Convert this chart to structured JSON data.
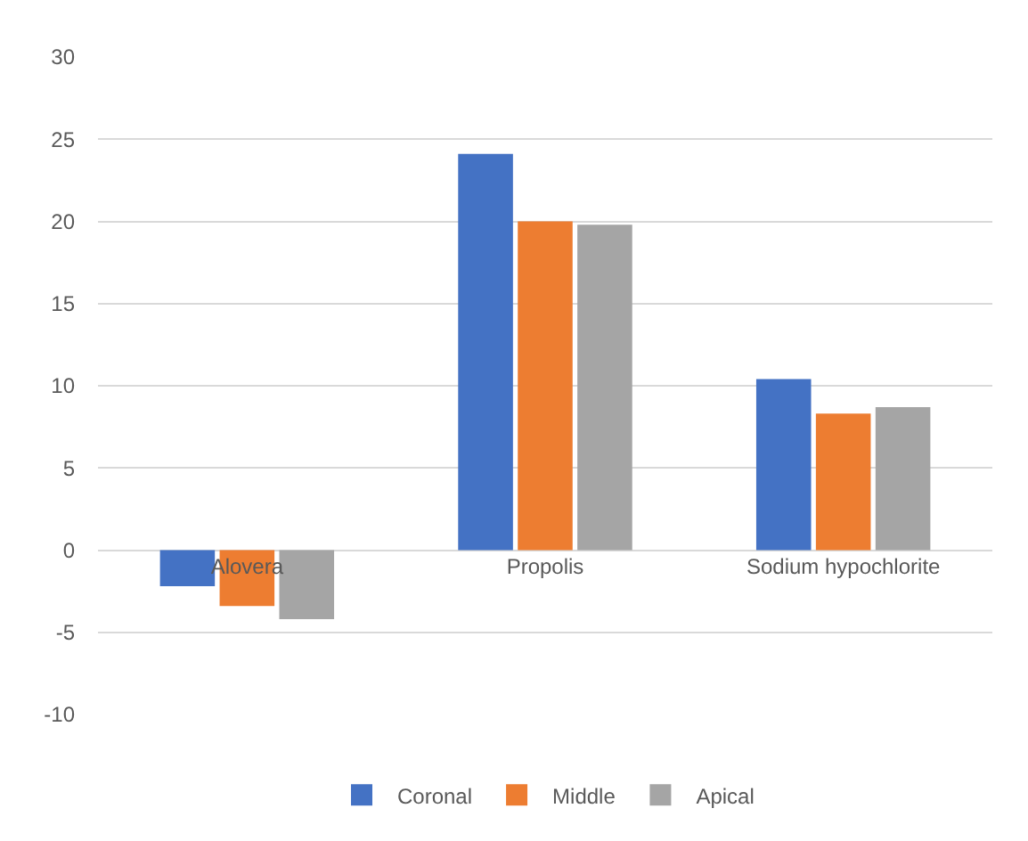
{
  "chart_data": {
    "type": "bar",
    "categories": [
      "Alovera",
      "Propolis",
      "Sodium hypochlorite"
    ],
    "series": [
      {
        "name": "Coronal",
        "color": "#4472c4",
        "values": [
          -2.2,
          24.1,
          10.4
        ]
      },
      {
        "name": "Middle",
        "color": "#ed7d31",
        "values": [
          -3.4,
          20.0,
          8.3
        ]
      },
      {
        "name": "Apical",
        "color": "#a5a5a5",
        "values": [
          -4.2,
          19.8,
          8.7
        ]
      }
    ],
    "ylim": [
      -10,
      30
    ],
    "yticks": [
      -10,
      -5,
      0,
      5,
      10,
      15,
      20,
      25,
      30
    ],
    "grid": "y",
    "legend": "bottom"
  }
}
